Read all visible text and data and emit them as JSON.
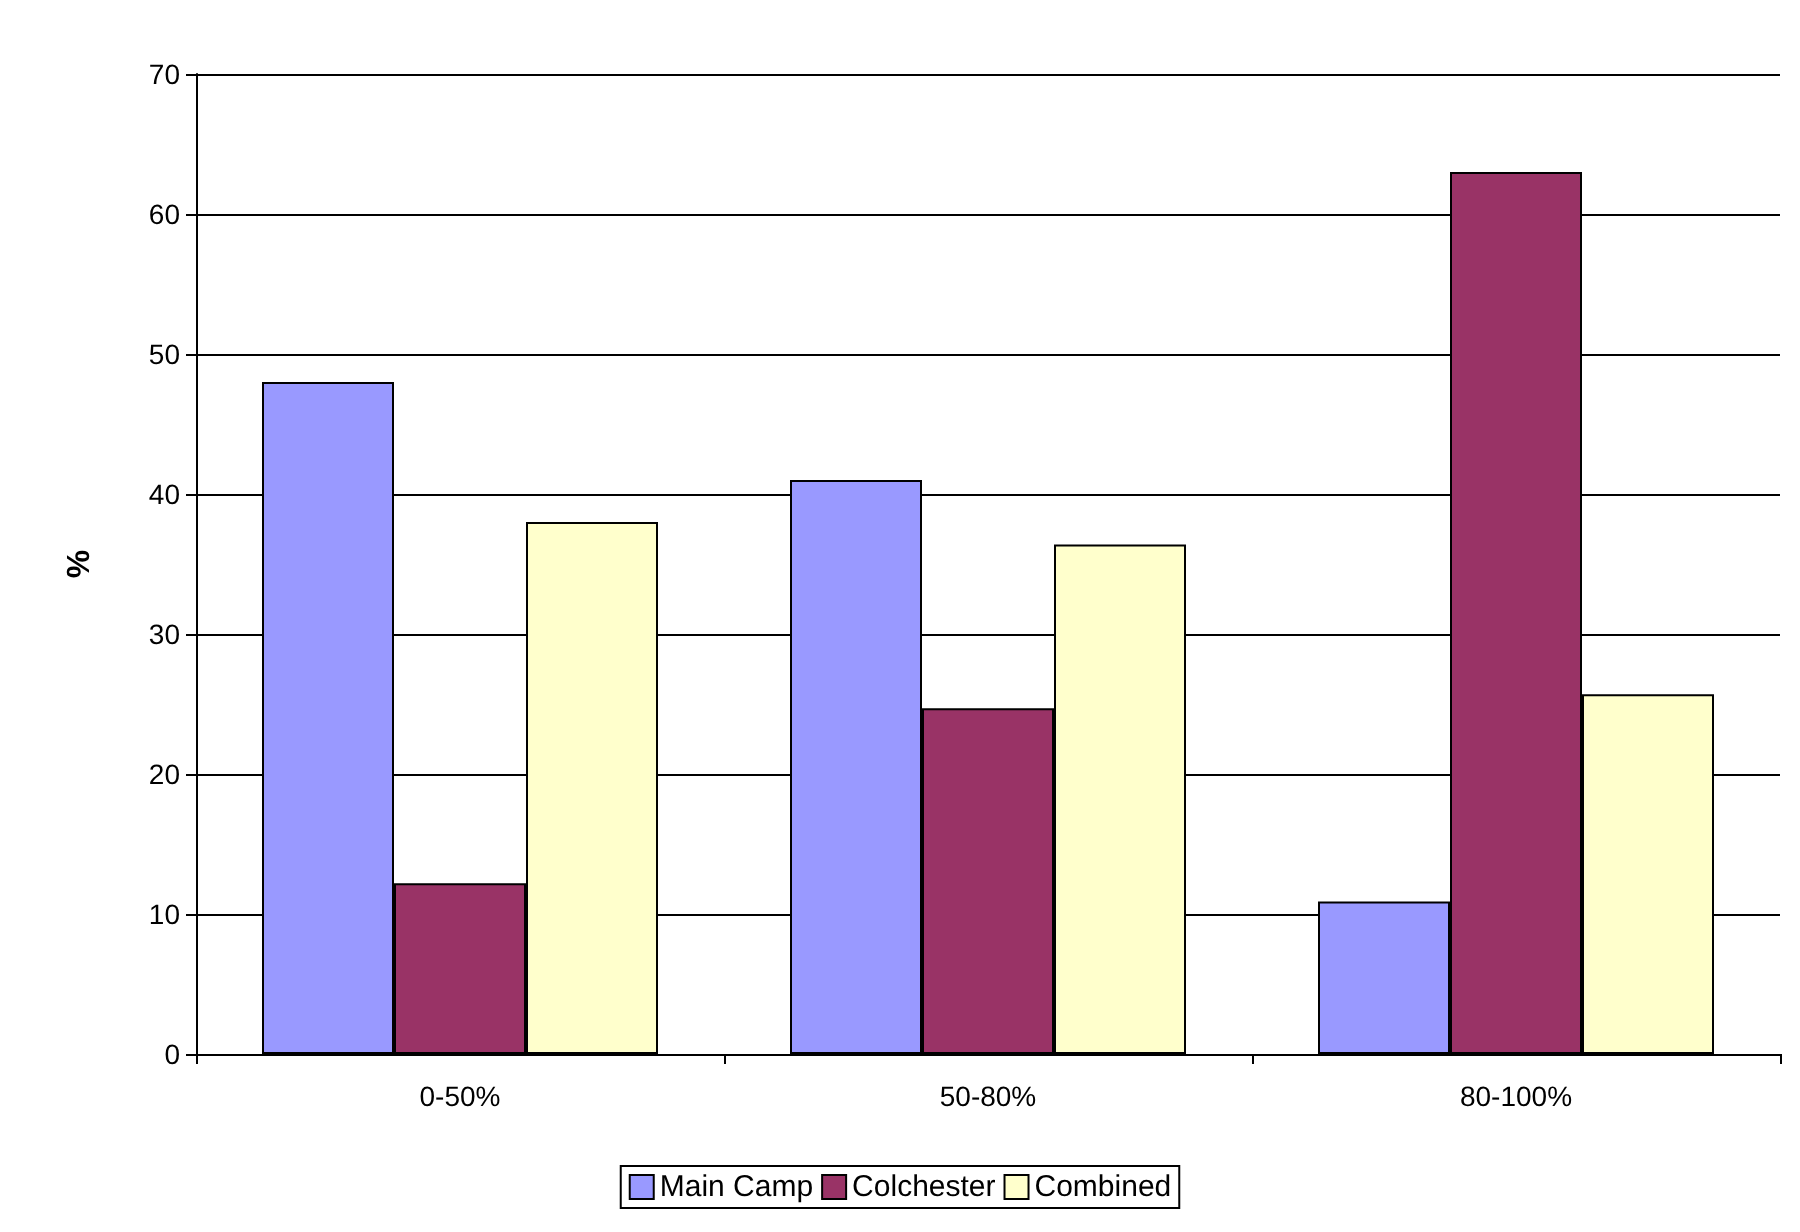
{
  "chart_data": {
    "type": "bar",
    "ylabel": "%",
    "categories": [
      "0-50%",
      "50-80%",
      "80-100%"
    ],
    "series": [
      {
        "name": "Main Camp",
        "color": "#9999ff",
        "values": [
          48,
          41,
          10.9
        ]
      },
      {
        "name": "Colchester",
        "color": "#993366",
        "values": [
          12.2,
          24.7,
          63
        ]
      },
      {
        "name": "Combined",
        "color": "#ffffcc",
        "values": [
          38,
          36.4,
          25.7
        ]
      }
    ],
    "ylim": [
      0,
      70
    ],
    "yticks": [
      0,
      10,
      20,
      30,
      40,
      50,
      60,
      70
    ],
    "grid": "y",
    "legend": "bottom"
  }
}
